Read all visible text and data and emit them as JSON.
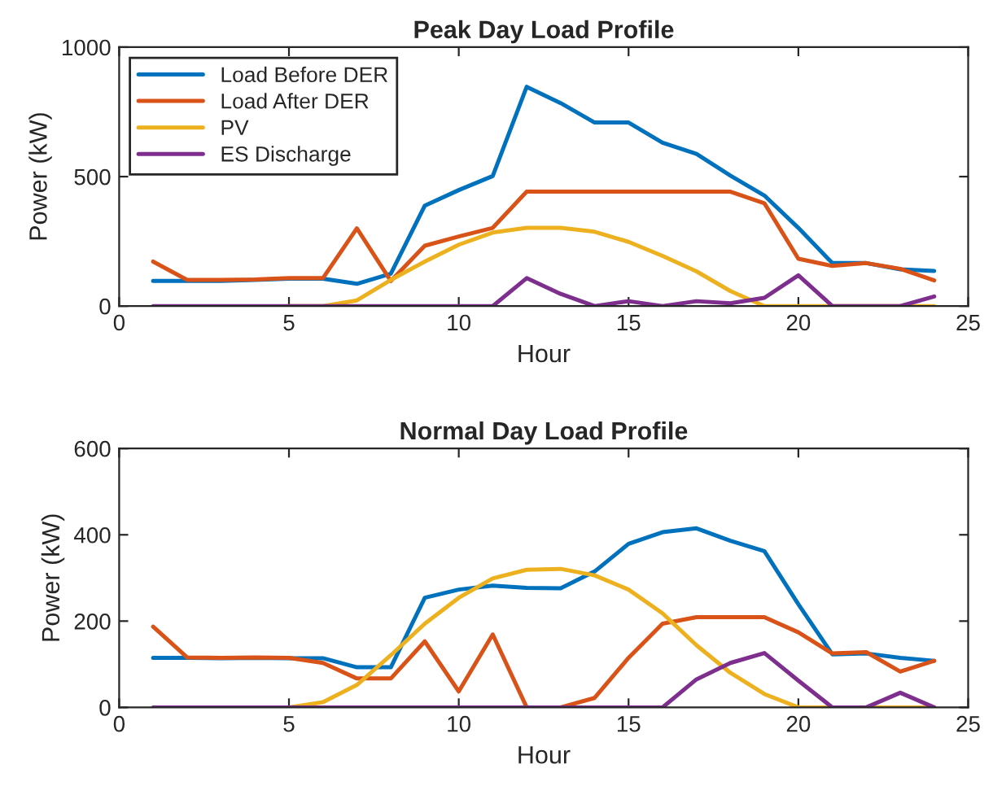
{
  "chart_data": [
    {
      "type": "line",
      "title": "Peak Day Load Profile",
      "xlabel": "Hour",
      "ylabel": "Power (kW)",
      "x": [
        1,
        2,
        3,
        4,
        5,
        6,
        7,
        8,
        9,
        10,
        11,
        12,
        13,
        14,
        15,
        16,
        17,
        18,
        19,
        20,
        21,
        22,
        23,
        24
      ],
      "xlim": [
        0,
        25
      ],
      "xticks": [
        0,
        5,
        10,
        15,
        20,
        25
      ],
      "ylim": [
        0,
        1000
      ],
      "yticks": [
        0,
        500,
        1000
      ],
      "grid": false,
      "legend": "top left",
      "marker": "none",
      "line_style": "solid",
      "series": [
        {
          "name": "Load Before DER",
          "color": "#0072bd",
          "values": [
            97,
            97,
            97,
            101,
            106,
            106,
            86,
            125,
            388,
            448,
            502,
            847,
            784,
            709,
            709,
            631,
            588,
            504,
            427,
            302,
            166,
            166,
            142,
            136
          ]
        },
        {
          "name": "Load After DER",
          "color": "#d95319",
          "values": [
            172,
            101,
            101,
            103,
            108,
            108,
            300,
            97,
            233,
            269,
            302,
            442,
            442,
            442,
            442,
            442,
            442,
            442,
            397,
            183,
            155,
            166,
            144,
            99
          ]
        },
        {
          "name": "PV",
          "color": "#edb120",
          "values": [
            null,
            null,
            null,
            null,
            0,
            0,
            22,
            101,
            172,
            237,
            284,
            302,
            302,
            287,
            248,
            194,
            134,
            58,
            0,
            0,
            0,
            0,
            0,
            0
          ]
        },
        {
          "name": "ES Discharge",
          "color": "#7e2f8e",
          "values": [
            0,
            0,
            0,
            0,
            0,
            0,
            0,
            0,
            0,
            0,
            0,
            108,
            47,
            0,
            19,
            0,
            19,
            11,
            32,
            119,
            0,
            0,
            0,
            37
          ]
        }
      ]
    },
    {
      "type": "line",
      "title": "Normal Day Load Profile",
      "xlabel": "Hour",
      "ylabel": "Power (kW)",
      "x": [
        1,
        2,
        3,
        4,
        5,
        6,
        7,
        8,
        9,
        10,
        11,
        12,
        13,
        14,
        15,
        16,
        17,
        18,
        19,
        20,
        21,
        22,
        23,
        24
      ],
      "xlim": [
        0,
        25
      ],
      "xticks": [
        0,
        5,
        10,
        15,
        20,
        25
      ],
      "ylim": [
        0,
        600
      ],
      "yticks": [
        0,
        200,
        400,
        600
      ],
      "grid": false,
      "legend": false,
      "marker": "none",
      "line_style": "solid",
      "series": [
        {
          "color": "#0072bd",
          "values": [
            115,
            115,
            114,
            115,
            114,
            114,
            93,
            93,
            254,
            273,
            282,
            277,
            276,
            315,
            379,
            406,
            415,
            386,
            362,
            239,
            123,
            125,
            115,
            108
          ]
        },
        {
          "color": "#d95319",
          "values": [
            187,
            116,
            115,
            116,
            115,
            103,
            67,
            67,
            153,
            37,
            169,
            0,
            0,
            22,
            115,
            194,
            209,
            209,
            209,
            174,
            125,
            128,
            83,
            108
          ]
        },
        {
          "color": "#edb120",
          "values": [
            null,
            null,
            null,
            0,
            0,
            12,
            52,
            121,
            194,
            254,
            299,
            319,
            321,
            306,
            273,
            218,
            144,
            80,
            31,
            0,
            0,
            0,
            0,
            0
          ]
        },
        {
          "color": "#7e2f8e",
          "values": [
            0,
            0,
            0,
            0,
            0,
            0,
            0,
            0,
            0,
            0,
            0,
            0,
            0,
            0,
            0,
            0,
            65,
            103,
            126,
            62,
            0,
            0,
            34,
            0
          ]
        }
      ]
    }
  ]
}
